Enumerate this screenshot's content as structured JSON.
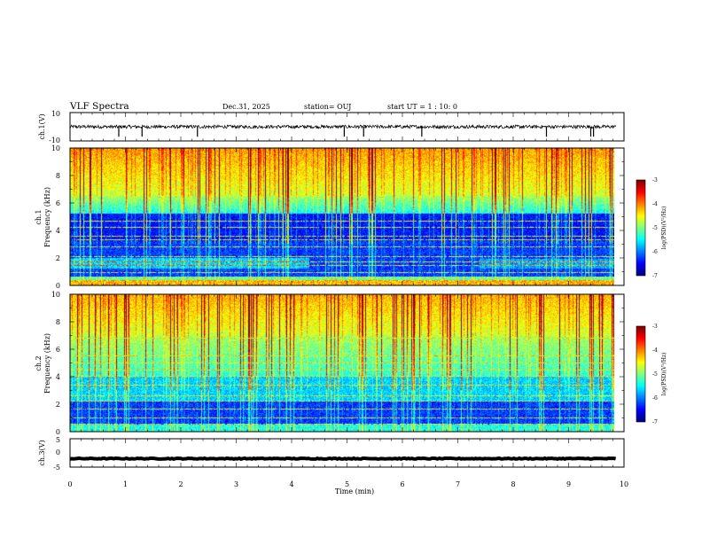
{
  "header": {
    "title": "VLF Spectra",
    "date": "Dec.31, 2025",
    "station": "station= OUJ",
    "start": "start  UT =   1 : 10: 0"
  },
  "chart_data": [
    {
      "id": "ch1-waveform",
      "type": "line",
      "ylabel": "ch.1(V)",
      "ylim": [
        -10,
        10
      ],
      "ytick_labels": [
        "10",
        "-10"
      ],
      "baseline": 0,
      "noise_amplitude": 1.2,
      "spikes": [
        0.88,
        1.3,
        2.3,
        4.95,
        5.3,
        6.35,
        8.6,
        9.4,
        9.45
      ]
    },
    {
      "id": "ch1-spectrogram",
      "type": "heatmap",
      "ylabel_channel": "ch.1",
      "ylabel": "Frequency (kHz)",
      "ylim": [
        0,
        10
      ],
      "ytick_labels": [
        "0",
        "2",
        "4",
        "6",
        "8",
        "10"
      ],
      "bright_band_top_khz": 6.5,
      "tones_khz": [
        0.3,
        0.5,
        0.9,
        1.4,
        1.7,
        2.1,
        2.8,
        3.3,
        3.6,
        4.2,
        4.7
      ],
      "colorbar_label": "log(PSD)(V²/Hz)",
      "colorbar_ticks": [
        "-3",
        "-4",
        "-5",
        "-6",
        "-7"
      ],
      "clim": [
        -7,
        -3
      ]
    },
    {
      "id": "ch2-spectrogram",
      "type": "heatmap",
      "ylabel_channel": "ch.2",
      "ylabel": "Frequency (kHz)",
      "ylim": [
        0,
        10
      ],
      "ytick_labels": [
        "0",
        "2",
        "4",
        "6",
        "8",
        "10"
      ],
      "bright_band_top_khz": 7.0,
      "tones_khz": [
        0.5,
        1.0,
        1.6,
        2.2,
        2.6,
        3.4,
        4.0,
        4.5,
        5.0,
        5.5,
        6.8
      ],
      "colorbar_label": "log(PSD)(V²/Hz)",
      "colorbar_ticks": [
        "-3",
        "-4",
        "-5",
        "-6",
        "-7"
      ],
      "clim": [
        -7,
        -3
      ]
    },
    {
      "id": "ch3-waveform",
      "type": "line",
      "ylabel": "ch.3(V)",
      "ylim": [
        -5,
        5
      ],
      "ytick_labels": [
        "5",
        "0",
        "-5"
      ],
      "baseline": -2,
      "noise_amplitude": 0.15,
      "spikes": []
    }
  ],
  "xaxis": {
    "xlabel": "Time (min)",
    "xlim": [
      0,
      10
    ],
    "data_end": 9.85,
    "tick_labels": [
      "0",
      "1",
      "2",
      "3",
      "4",
      "5",
      "6",
      "7",
      "8",
      "9",
      "10"
    ]
  }
}
